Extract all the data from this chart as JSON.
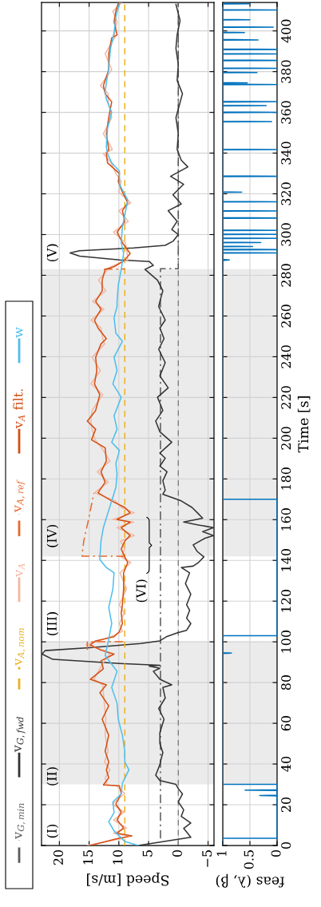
{
  "chart_data": [
    {
      "type": "line",
      "xlabel": "Speed [m/s]",
      "xlim": [
        23,
        -6
      ],
      "ylim": [
        0,
        414
      ],
      "xticks": [
        {
          "value": -5,
          "label": "−5"
        },
        0,
        5,
        10,
        15,
        20
      ],
      "yticks": [
        0,
        20,
        40,
        60,
        80,
        100,
        120,
        140,
        160,
        180,
        200,
        220,
        240,
        260,
        280,
        300,
        320,
        340,
        360,
        380,
        400
      ],
      "tick_labels": "x",
      "grid": true,
      "legend": "left",
      "bands": [
        {
          "axis": "y",
          "from": 30,
          "to": 100,
          "color": "#ebebeb"
        },
        {
          "axis": "y",
          "from": 142,
          "to": 283,
          "color": "#ebebeb"
        }
      ],
      "ref_lines": [
        {
          "axis": "x",
          "value": 0,
          "color": "#808080",
          "line_style": "dashed"
        }
      ],
      "annotations": [
        "(I)",
        "(II)",
        "(III)",
        "(IV)",
        "(V)",
        "(VI)"
      ],
      "series": [
        {
          "name": "v$_{G,min}$",
          "color": "#5a5a5a",
          "line_style": "dashdot",
          "x": [
            3.0,
            3.0,
            0,
            0
          ],
          "values": [
            3.4,
            283.2,
            283.2,
            414
          ]
        },
        {
          "name": "v$_{G,fwd}$",
          "color": "#333333",
          "line_style": "solid",
          "x": [
            6.7,
            -2.1,
            -0.9,
            -2.1,
            -0.5,
            -0.9,
            0,
            -0.7,
            0,
            0.4,
            3.1,
            3.8,
            3.1,
            2.9,
            2.6,
            3.1,
            3.1,
            2.4,
            3.3,
            2.2,
            2.6,
            1.1,
            3.1,
            4.2,
            3.1,
            4.9,
            3.1,
            9.9,
            21.1,
            22.9,
            22.4,
            14.4,
            6.3,
            3.1,
            2.0,
            0.2,
            -1.4,
            -2.1,
            -1.4,
            -1.9,
            -1.4,
            -2.1,
            -1.2,
            -1.9,
            -0.5,
            -2.5,
            -3.4,
            -4.3,
            -3.2,
            -2.5,
            -4.5,
            -5.9,
            -4.1,
            -5.9,
            -3.2,
            -0.9,
            -4.1,
            -3.2,
            -2.3,
            -0.5,
            2.6,
            2.2,
            2.6,
            1.9,
            3.1,
            2.2,
            3.1,
            1.1,
            3.1,
            3.8,
            2.6,
            3.5,
            1.7,
            3.1,
            2.2,
            3.3,
            2.4,
            3.1,
            2.2,
            3.3,
            3.1,
            2.6,
            3.5,
            5.6,
            4.2,
            4.9,
            9.9,
            16.6,
            18.2,
            16.6,
            7.5,
            2.2,
            0.9,
            0,
            1.1,
            0.2,
            1.7,
            -0.5,
            0.9,
            -0.9,
            1.3,
            -1.6,
            -0.5,
            0.2,
            0,
            0.4,
            -0.7,
            0.2,
            0,
            0.4,
            0.2,
            -0.3,
            0.4
          ],
          "values": [
            0,
            4,
            8.4,
            11,
            14.3,
            17.5,
            21.4,
            25.3,
            27.9,
            30,
            31.9,
            34.5,
            39.7,
            42.4,
            45.6,
            50,
            55.4,
            62,
            67.2,
            72.4,
            77.6,
            78.9,
            81.6,
            85.5,
            87,
            88.1,
            88.5,
            89.4,
            91.4,
            94,
            95.7,
            97.2,
            99.2,
            100.5,
            102.5,
            104.4,
            105.7,
            109,
            111.6,
            115.5,
            118.2,
            123.4,
            128.6,
            133.9,
            136.5,
            137.2,
            139,
            141.7,
            144.3,
            147.6,
            150.9,
            152.2,
            154.1,
            156.1,
            157.5,
            158.8,
            160.7,
            163.4,
            166,
            169.2,
            172.5,
            174.5,
            179.1,
            183.5,
            186.3,
            190.2,
            192.7,
            198,
            203.1,
            208.4,
            213.6,
            220.1,
            224.7,
            230.6,
            237.1,
            243.7,
            248.9,
            254.1,
            258,
            264.6,
            267.2,
            272.4,
            277.6,
            282.9,
            284.9,
            286.8,
            287.5,
            289.4,
            291,
            292.1,
            293.4,
            294.7,
            296.7,
            300,
            302.5,
            306.5,
            311.7,
            315,
            319.5,
            324.7,
            328.6,
            333.2,
            336.5,
            341.8,
            349.5,
            357.4,
            369.2,
            375.7,
            383.5,
            391.4,
            398,
            405.1,
            413
          ]
        },
        {
          "name": "v$_{A,nom}$",
          "color": "#edb120",
          "line_style": "dashed",
          "x": [
            9,
            9
          ],
          "values": [
            0,
            414
          ]
        },
        {
          "name": "v$_{A}$",
          "color": "#f4b6a0",
          "line_style": "solid",
          "x": [
            15.3,
            9.6,
            8.4,
            10.9,
            8.7,
            10.9,
            9.1,
            11.1,
            9.0,
            10.4,
            12.0,
            12.3,
            11.5,
            12.4,
            11.8,
            12.3,
            12.2,
            12.4,
            12.6,
            12.7,
            14.2,
            13.2,
            12.4,
            11.5,
            12.4,
            15.5,
            13.3,
            11.3,
            9.4,
            9.9,
            9.1,
            9.9,
            8.7,
            9.8,
            8.0,
            9.6,
            9.0,
            9.7,
            7.4,
            10.3,
            7.5,
            11.0,
            7.4,
            9.6,
            10.6,
            14.1,
            11.8,
            13.6,
            11.5,
            12.9,
            14.0,
            14.5,
            14.7,
            14.5,
            12.7,
            14.7,
            13.1,
            14.5,
            12.4,
            12.7,
            13.0,
            14.7,
            12.5,
            14.4,
            12.2,
            13.4,
            11.8,
            11.3,
            8.5,
            8.6,
            8.9,
            10.9,
            8.4,
            10.0,
            8.0,
            10.0,
            9.6,
            10.5,
            11.3,
            12.6,
            11.1,
            12.6,
            11.2,
            11.8,
            11.8,
            13.1,
            11.2,
            12.3,
            10.7,
            10.8,
            10.3,
            11.0,
            9.6
          ],
          "values": [
            0,
            3.3,
            4.7,
            6,
            8.6,
            12.5,
            16.4,
            20.3,
            25.5,
            29.3,
            29.7,
            33.2,
            37.1,
            41,
            46.3,
            54.1,
            62,
            68.5,
            75,
            78.9,
            81.6,
            86.8,
            90.7,
            94,
            95.9,
            98.5,
            100.5,
            102.5,
            105.1,
            109,
            114.2,
            118.2,
            126,
            133.9,
            139,
            141.7,
            145.6,
            149.5,
            152.2,
            156.1,
            158.8,
            160.1,
            163.4,
            166,
            169.2,
            173.2,
            178.4,
            183.5,
            188.8,
            195.3,
            199.2,
            204.4,
            208.4,
            213.6,
            221.4,
            226.7,
            233.2,
            239.8,
            246.3,
            248.9,
            254.1,
            258,
            263.3,
            267.2,
            272.4,
            277.6,
            282.9,
            284.2,
            287.5,
            290.7,
            296,
            301.2,
            306.5,
            311.7,
            315.6,
            320.8,
            326,
            330,
            335.2,
            339.7,
            341.8,
            349.5,
            357.4,
            365.2,
            369.2,
            373.1,
            381,
            388.8,
            396.6,
            398,
            404.5,
            409.7,
            413.6
          ]
        },
        {
          "name": "v$_{A,ref}$",
          "color": "#e8692d",
          "line_style": "dashdot",
          "x": [
            15.3,
            15.3,
            9,
            null,
            9,
            16.2,
            15.9,
            15.1,
            14.2,
            null,
            12.5,
            9
          ],
          "values": [
            96,
            100,
            100.1,
            null,
            142,
            142.1,
            149.5,
            160,
            173,
            null,
            283,
            283.1
          ]
        },
        {
          "name": "v$_{A}$ filt.",
          "color": "#d34f14",
          "line_style": "solid",
          "x": [
            14.8,
            10.3,
            7.8,
            10.3,
            9.2,
            10.3,
            9.6,
            10.5,
            9.6,
            9.9,
            12.6,
            11.7,
            12.1,
            11.7,
            12.3,
            11.7,
            12.8,
            11.7,
            13.2,
            12.1,
            14.8,
            12.6,
            13.0,
            10.8,
            13.0,
            14.8,
            13.9,
            10.8,
            9.9,
            9.4,
            9.6,
            9.4,
            9.2,
            9.2,
            8.5,
            9.0,
            9.6,
            9.0,
            8.1,
            9.6,
            8.1,
            10.3,
            8.1,
            9.0,
            11.2,
            13.5,
            12.3,
            13.0,
            12.1,
            12.3,
            14.6,
            13.9,
            15.3,
            13.9,
            13.2,
            14.1,
            13.7,
            13.9,
            13.0,
            12.1,
            13.5,
            14.1,
            13.0,
            13.9,
            12.8,
            12.8,
            12.3,
            10.8,
            9.0,
            8.1,
            9.4,
            10.3,
            9.0,
            9.4,
            8.5,
            9.4,
            10.1,
            9.9,
            11.9,
            12.1,
            11.7,
            12.1,
            11.7,
            11.2,
            12.3,
            12.6,
            11.7,
            11.7,
            11.2,
            10.3,
            10.8,
            10.5,
            10.1
          ],
          "values": [
            0,
            3.3,
            4.7,
            6,
            8.6,
            12.5,
            16.4,
            20.3,
            25.5,
            29.3,
            29.7,
            33.2,
            37.1,
            41,
            46.3,
            54.1,
            62,
            68.5,
            75,
            78.9,
            81.6,
            86.8,
            90.7,
            94,
            95.9,
            98.5,
            100.5,
            102.5,
            105.1,
            109,
            114.2,
            118.2,
            126,
            133.9,
            139,
            141.7,
            145.6,
            149.5,
            152.2,
            156.1,
            158.8,
            160.1,
            163.4,
            166,
            169.2,
            173.2,
            178.4,
            183.5,
            188.8,
            195.3,
            199.2,
            204.4,
            208.4,
            213.6,
            221.4,
            226.7,
            233.2,
            239.8,
            246.3,
            248.9,
            254.1,
            258,
            263.3,
            267.2,
            272.4,
            277.6,
            282.9,
            284.2,
            287.5,
            290.7,
            296,
            301.2,
            306.5,
            311.7,
            315.6,
            320.8,
            326,
            330,
            335.2,
            339.7,
            341.8,
            349.5,
            357.4,
            365.2,
            369.2,
            373.1,
            381,
            388.8,
            396.6,
            398,
            404.5,
            409.7,
            413.6
          ]
        },
        {
          "name": "w",
          "color": "#4dbeee",
          "line_style": "solid",
          "x": [
            6.7,
            9.0,
            10.8,
            11.7,
            10.8,
            11.0,
            9.6,
            9.4,
            8.3,
            9.0,
            9.0,
            9.4,
            10.1,
            10.3,
            11.2,
            10.3,
            12.3,
            11.7,
            11.2,
            11.7,
            11.0,
            10.8,
            12.1,
            13.2,
            13.0,
            12.6,
            11.9,
            11.2,
            10.5,
            10.3,
            10.5,
            9.9,
            11.2,
            10.3,
            10.8,
            9.6,
            11.0,
            10.3,
            10.8,
            9.4,
            10.5,
            10.8,
            10.3,
            10.3,
            10.1,
            9.6,
            9.2,
            9.6,
            9.4,
            8.5,
            9.9,
            9.9,
            11.2,
            11.9,
            12.1,
            11.9,
            11.2,
            12.1,
            12.3,
            11.7,
            11.4,
            10.8,
            10.5,
            9.9
          ],
          "values": [
            0,
            2.0,
            7.1,
            11.6,
            16.1,
            21.4,
            25.3,
            30.6,
            37.1,
            41,
            46.3,
            54.1,
            62,
            69.8,
            77.6,
            85.5,
            93.3,
            101.2,
            109,
            116.9,
            126,
            133.9,
            136.5,
            140.4,
            149.5,
            156.1,
            162.7,
            169.2,
            175.8,
            182.3,
            187.6,
            194,
            198,
            204.4,
            211,
            220.1,
            226.7,
            233.2,
            239.8,
            247.6,
            251.5,
            259.3,
            264.6,
            267.2,
            275,
            282.9,
            290.7,
            296,
            303.8,
            316.9,
            324.7,
            331.2,
            335.2,
            339.7,
            343.1,
            352.2,
            360,
            366.5,
            370.4,
            382.2,
            391.4,
            399.2,
            407,
            413.6
          ]
        }
      ]
    },
    {
      "type": "line",
      "xlabel": "feas (λ, β)",
      "ylabel": "Time [s]",
      "xlim": [
        1,
        0
      ],
      "ylim": [
        0,
        414
      ],
      "xticks": [
        0,
        0.5,
        1
      ],
      "yticks": [
        0,
        20,
        40,
        60,
        80,
        100,
        120,
        140,
        160,
        180,
        200,
        220,
        240,
        260,
        280,
        300,
        320,
        340,
        360,
        380,
        400
      ],
      "grid": true,
      "bands": [
        {
          "axis": "y",
          "from": 30,
          "to": 100,
          "color": "#ebebeb"
        },
        {
          "axis": "y",
          "from": 142,
          "to": 283,
          "color": "#ebebeb"
        }
      ],
      "series": [
        {
          "color": "#0072bd",
          "line_style": "solid",
          "x": [
            1,
            1,
            0,
            0,
            0.32,
            0,
            0,
            0.59,
            0,
            0,
            1,
            1,
            0.84,
            1,
            1,
            0,
            0,
            1,
            1,
            0.88,
            1,
            1,
            0,
            1,
            1,
            0,
            1,
            1,
            0.45,
            1,
            1,
            0.3,
            1,
            1,
            0,
            1,
            1,
            0,
            1,
            1,
            0,
            1,
            1,
            0,
            1,
            1,
            0,
            1,
            1,
            0,
            1,
            1,
            0.65,
            1,
            1,
            0,
            1,
            1,
            0,
            1,
            1,
            0.1,
            1,
            1,
            0,
            1,
            1,
            0.2,
            1,
            1,
            0,
            1,
            1,
            0,
            1,
            1,
            0.55,
            1,
            1,
            0.37,
            1,
            1,
            0,
            1,
            1,
            0,
            1,
            1,
            0,
            1,
            1,
            0,
            1,
            1,
            0.35,
            1,
            1,
            0.6,
            1,
            1,
            0.07,
            1,
            1,
            0.5,
            1,
            1,
            0,
            1,
            1,
            0.52,
            1
          ],
          "values": [
            0,
            3.5,
            3.5,
            24.3,
            24.5,
            24.7,
            27,
            27.2,
            27.4,
            30,
            30,
            94.3,
            94.5,
            94.7,
            103,
            103,
            170,
            170,
            287.3,
            287.5,
            287.8,
            290.9,
            291,
            291.2,
            292.5,
            292.6,
            292.8,
            294,
            294.1,
            294.3,
            296,
            296.1,
            296.3,
            298,
            298.1,
            298.3,
            300,
            300.1,
            300.3,
            302,
            302.1,
            302.3,
            308,
            308.1,
            308.3,
            311.5,
            311.6,
            311.8,
            316,
            316.1,
            316.3,
            320.7,
            320.8,
            321,
            328.5,
            328.6,
            328.8,
            341.6,
            341.7,
            341.9,
            355.3,
            355.4,
            355.6,
            359.9,
            360,
            360.2,
            363.2,
            363.3,
            363.5,
            365.1,
            365.2,
            365.4,
            373.6,
            373.7,
            373.9,
            374.4,
            374.5,
            374.7,
            379.5,
            379.6,
            379.8,
            381.5,
            381.6,
            381.8,
            385.4,
            385.5,
            385.7,
            388.6,
            388.7,
            388.9,
            390.8,
            390.9,
            391.1,
            395.5,
            395.6,
            395.8,
            399.1,
            399.2,
            399.4,
            401.7,
            401.8,
            402,
            405.4,
            405.5,
            405.7,
            410.2,
            410.3,
            410.5,
            413.2,
            413.3,
            413.5
          ]
        }
      ]
    }
  ]
}
